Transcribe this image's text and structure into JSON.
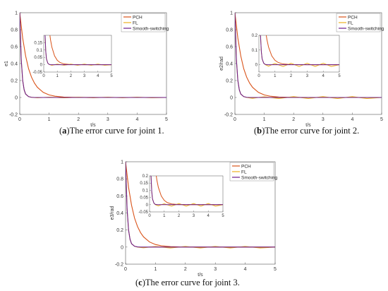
{
  "colors": {
    "PCH": "#d95319",
    "FL": "#edb120",
    "Smooth-switching": "#6a1a8a"
  },
  "chart_data": [
    {
      "type": "line",
      "panel": "a",
      "caption": {
        "label": "a",
        "text": "The error curve for joint 1."
      },
      "xlabel": "t/s",
      "ylabel": "e1",
      "xlim": [
        0,
        5
      ],
      "ylim": [
        -0.2,
        1
      ],
      "xticks": [
        0,
        1,
        2,
        3,
        4,
        5
      ],
      "yticks": [
        -0.2,
        0,
        0.2,
        0.4,
        0.6,
        0.8,
        1
      ],
      "legend": {
        "placement": "top-right",
        "entries": [
          "PCH",
          "FL",
          "Smooth-switching"
        ]
      },
      "series": [
        {
          "name": "PCH",
          "x": [
            0,
            0.1,
            0.2,
            0.3,
            0.4,
            0.5,
            0.6,
            0.8,
            1.0,
            1.2,
            1.5,
            2,
            3,
            4,
            5
          ],
          "values": [
            1.0,
            0.7,
            0.49,
            0.34,
            0.24,
            0.17,
            0.12,
            0.06,
            0.03,
            0.015,
            0.005,
            0.001,
            0,
            0,
            0
          ]
        },
        {
          "name": "FL",
          "x": [
            0,
            0.05,
            0.1,
            0.15,
            0.2,
            0.3,
            0.4,
            0.6,
            0.8,
            1.0,
            1.5,
            2.0,
            2.5,
            3.0,
            3.5,
            4.0,
            4.5,
            5.0
          ],
          "values": [
            1.0,
            0.45,
            0.2,
            0.09,
            0.04,
            0.01,
            0.002,
            -0.004,
            0.0,
            0.004,
            -0.004,
            0.004,
            -0.004,
            0.004,
            -0.004,
            0.004,
            -0.004,
            0
          ]
        },
        {
          "name": "Smooth-switching",
          "x": [
            0,
            0.05,
            0.1,
            0.15,
            0.2,
            0.3,
            0.4,
            0.5,
            0.6,
            1,
            2,
            3,
            4,
            5
          ],
          "values": [
            1.0,
            0.45,
            0.2,
            0.09,
            0.04,
            0.01,
            0.002,
            0,
            0,
            0,
            0,
            0,
            0,
            0
          ]
        }
      ],
      "inset": {
        "xlim": [
          0,
          5
        ],
        "ylim": [
          -0.05,
          0.2
        ],
        "xticks": [
          0,
          1,
          2,
          3,
          4,
          5
        ],
        "yticks": [
          -0.05,
          0,
          0.05,
          0.1,
          0.15
        ]
      }
    },
    {
      "type": "line",
      "panel": "b",
      "caption": {
        "label": "b",
        "text": "The error curve for joint 2."
      },
      "xlabel": "t/s",
      "ylabel": "e2/rad",
      "xlim": [
        0,
        5
      ],
      "ylim": [
        -0.2,
        1
      ],
      "xticks": [
        0,
        1,
        2,
        3,
        4,
        5
      ],
      "yticks": [
        -0.2,
        0,
        0.2,
        0.4,
        0.6,
        0.8,
        1
      ],
      "legend": {
        "placement": "top-right",
        "entries": [
          "PCH",
          "FL",
          "Smooth-switching"
        ]
      },
      "series": [
        {
          "name": "PCH",
          "x": [
            0,
            0.1,
            0.2,
            0.3,
            0.4,
            0.5,
            0.6,
            0.8,
            1.0,
            1.2,
            1.5,
            2,
            3,
            4,
            5
          ],
          "values": [
            1.0,
            0.7,
            0.49,
            0.34,
            0.24,
            0.17,
            0.12,
            0.06,
            0.03,
            0.015,
            0.005,
            0.001,
            0,
            0,
            0
          ]
        },
        {
          "name": "FL",
          "x": [
            0,
            0.05,
            0.1,
            0.15,
            0.2,
            0.3,
            0.4,
            0.6,
            0.8,
            1.0,
            1.5,
            2.0,
            2.5,
            3.0,
            3.5,
            4.0,
            4.5,
            5.0
          ],
          "values": [
            1.0,
            0.45,
            0.2,
            0.09,
            0.04,
            0.01,
            0.0,
            -0.01,
            0.0,
            0.008,
            -0.012,
            0.01,
            -0.012,
            0.01,
            -0.012,
            0.01,
            -0.012,
            0
          ]
        },
        {
          "name": "Smooth-switching",
          "x": [
            0,
            0.05,
            0.1,
            0.15,
            0.2,
            0.3,
            0.4,
            0.5,
            0.6,
            1,
            2,
            3,
            4,
            5
          ],
          "values": [
            1.0,
            0.45,
            0.2,
            0.09,
            0.04,
            0.01,
            0.002,
            0,
            0,
            0,
            0,
            0,
            0,
            0
          ]
        }
      ],
      "inset": {
        "xlim": [
          0,
          5
        ],
        "ylim": [
          -0.05,
          0.2
        ],
        "xticks": [
          0,
          1,
          2,
          3,
          4,
          5
        ],
        "yticks": [
          0,
          0.1,
          0.2
        ]
      }
    },
    {
      "type": "line",
      "panel": "c",
      "caption": {
        "label": "c",
        "text": "The error curve for joint 3."
      },
      "xlabel": "t/s",
      "ylabel": "e3/rad",
      "xlim": [
        0,
        5
      ],
      "ylim": [
        -0.2,
        1
      ],
      "xticks": [
        0,
        1,
        2,
        3,
        4,
        5
      ],
      "yticks": [
        -0.2,
        0,
        0.2,
        0.4,
        0.6,
        0.8,
        1
      ],
      "legend": {
        "placement": "top-right",
        "entries": [
          "PCH",
          "FL",
          "Smooth-switching"
        ]
      },
      "series": [
        {
          "name": "PCH",
          "x": [
            0,
            0.1,
            0.2,
            0.3,
            0.4,
            0.5,
            0.6,
            0.8,
            1.0,
            1.2,
            1.5,
            2,
            3,
            4,
            5
          ],
          "values": [
            1.0,
            0.7,
            0.49,
            0.34,
            0.24,
            0.17,
            0.12,
            0.06,
            0.03,
            0.015,
            0.005,
            0.001,
            0,
            0,
            0
          ]
        },
        {
          "name": "FL",
          "x": [
            0,
            0.05,
            0.1,
            0.15,
            0.2,
            0.3,
            0.4,
            0.6,
            0.8,
            1.0,
            1.5,
            2.0,
            2.5,
            3.0,
            3.5,
            4.0,
            4.5,
            5.0
          ],
          "values": [
            1.0,
            0.45,
            0.2,
            0.09,
            0.04,
            0.01,
            0.0,
            -0.008,
            0.0,
            0.006,
            -0.01,
            0.008,
            -0.01,
            0.008,
            -0.01,
            0.008,
            -0.01,
            0
          ]
        },
        {
          "name": "Smooth-switching",
          "x": [
            0,
            0.05,
            0.1,
            0.15,
            0.2,
            0.3,
            0.4,
            0.5,
            0.6,
            1,
            2,
            3,
            4,
            5
          ],
          "values": [
            1.0,
            0.45,
            0.2,
            0.09,
            0.04,
            0.01,
            0.002,
            0,
            0,
            0,
            0,
            0,
            0,
            0
          ]
        }
      ],
      "inset": {
        "xlim": [
          0,
          5
        ],
        "ylim": [
          -0.05,
          0.2
        ],
        "xticks": [
          0,
          1,
          2,
          3,
          4,
          5
        ],
        "yticks": [
          -0.05,
          0,
          0.05,
          0.1,
          0.15,
          0.2
        ]
      }
    }
  ]
}
